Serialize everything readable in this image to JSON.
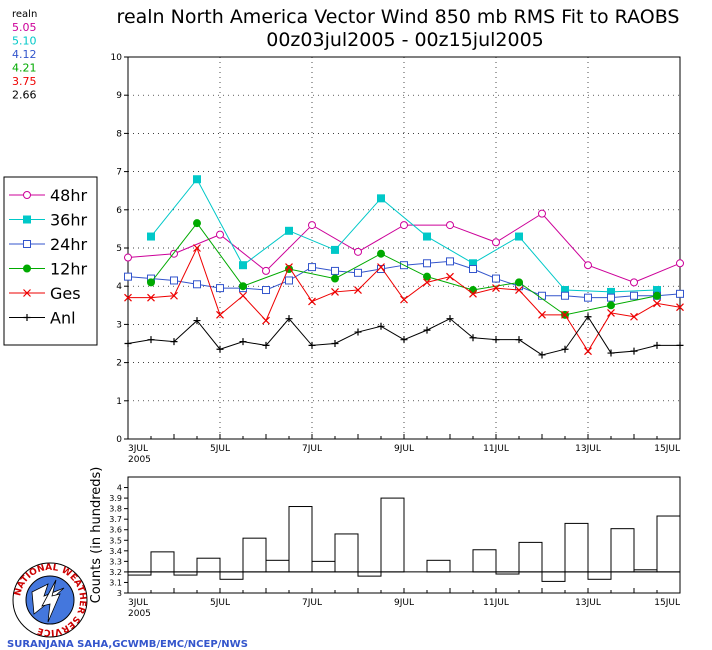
{
  "title_line1": "realn North America Vector Wind 850 mb RMS Fit to RAOBS",
  "title_line2": "00z03jul2005 - 00z15jul2005",
  "means": {
    "label": "realn",
    "items": [
      {
        "value": "5.05",
        "color": "#cc0099"
      },
      {
        "value": "5.10",
        "color": "#00c8c8"
      },
      {
        "value": "4.12",
        "color": "#3355cc"
      },
      {
        "value": "4.21",
        "color": "#00aa00"
      },
      {
        "value": "3.75",
        "color": "#ee0000"
      },
      {
        "value": "2.66",
        "color": "#000000"
      }
    ]
  },
  "legend": [
    {
      "label": "48hr",
      "color": "#cc0099",
      "marker": "circle-open"
    },
    {
      "label": "36hr",
      "color": "#00c8c8",
      "marker": "square-filled"
    },
    {
      "label": "24hr",
      "color": "#3355cc",
      "marker": "square-open"
    },
    {
      "label": "12hr",
      "color": "#00aa00",
      "marker": "circle-filled"
    },
    {
      "label": "Ges",
      "color": "#ee0000",
      "marker": "x"
    },
    {
      "label": "Anl",
      "color": "#000000",
      "marker": "plus"
    }
  ],
  "credit": "SURANJANA SAHA,GCWMB/EMC/NCEP/NWS",
  "logo_text": "NATIONAL WEATHER SERVICE",
  "chart_data": [
    {
      "type": "line",
      "x_unit": "days since 00z03jul2005",
      "xlim": [
        0,
        12
      ],
      "ylim": [
        0,
        10
      ],
      "yticks": [
        0,
        1,
        2,
        3,
        4,
        5,
        6,
        7,
        8,
        9,
        10
      ],
      "xtick_labels": [
        {
          "x": 0,
          "label": "3JUL",
          "sub": "2005"
        },
        {
          "x": 2,
          "label": "5JUL"
        },
        {
          "x": 4,
          "label": "7JUL"
        },
        {
          "x": 6,
          "label": "9JUL"
        },
        {
          "x": 8,
          "label": "11JUL"
        },
        {
          "x": 10,
          "label": "13JUL"
        },
        {
          "x": 12,
          "label": "15JUL"
        }
      ],
      "grid": true,
      "series": [
        {
          "name": "48hr",
          "x": [
            0,
            1,
            2,
            3,
            4,
            5,
            6,
            7,
            8,
            9,
            10,
            11,
            12
          ],
          "y": [
            4.75,
            4.85,
            5.35,
            4.4,
            5.6,
            4.9,
            5.6,
            5.6,
            5.15,
            5.9,
            4.55,
            4.1,
            4.6
          ]
        },
        {
          "name": "36hr",
          "x": [
            0.5,
            1.5,
            2.5,
            3.5,
            4.5,
            5.5,
            6.5,
            7.5,
            8.5,
            9.5,
            10.5,
            11.5
          ],
          "y": [
            5.3,
            6.8,
            4.55,
            5.45,
            4.95,
            6.3,
            5.3,
            4.6,
            5.3,
            3.9,
            3.85,
            3.9
          ]
        },
        {
          "name": "24hr",
          "x": [
            0,
            0.5,
            1,
            1.5,
            2,
            2.5,
            3,
            3.5,
            4,
            4.5,
            5,
            5.5,
            6,
            6.5,
            7,
            7.5,
            8,
            8.5,
            9,
            9.5,
            10,
            10.5,
            11,
            11.5,
            12
          ],
          "y": [
            4.25,
            4.2,
            4.15,
            4.05,
            3.95,
            3.95,
            3.9,
            4.15,
            4.5,
            4.4,
            4.35,
            4.45,
            4.55,
            4.6,
            4.65,
            4.45,
            4.2,
            4.0,
            3.75,
            3.75,
            3.7,
            3.7,
            3.75,
            3.75,
            3.8
          ]
        },
        {
          "name": "12hr",
          "x": [
            0.5,
            1.5,
            2.5,
            3.5,
            4.5,
            5.5,
            6.5,
            7.5,
            8.5,
            9.5,
            10.5,
            11.5
          ],
          "y": [
            4.1,
            5.65,
            4.0,
            4.45,
            4.2,
            4.85,
            4.25,
            3.9,
            4.1,
            3.25,
            3.5,
            3.75
          ]
        },
        {
          "name": "Ges",
          "x": [
            0,
            0.5,
            1,
            1.5,
            2,
            2.5,
            3,
            3.5,
            4,
            4.5,
            5,
            5.5,
            6,
            6.5,
            7,
            7.5,
            8,
            8.5,
            9,
            9.5,
            10,
            10.5,
            11,
            11.5,
            12
          ],
          "y": [
            3.7,
            3.7,
            3.75,
            5.0,
            3.25,
            3.75,
            3.1,
            4.5,
            3.6,
            3.85,
            3.9,
            4.5,
            3.65,
            4.1,
            4.25,
            3.8,
            3.95,
            3.9,
            3.25,
            3.25,
            2.3,
            3.3,
            3.2,
            3.55,
            3.45
          ]
        },
        {
          "name": "Anl",
          "x": [
            0,
            0.5,
            1,
            1.5,
            2,
            2.5,
            3,
            3.5,
            4,
            4.5,
            5,
            5.5,
            6,
            6.5,
            7,
            7.5,
            8,
            8.5,
            9,
            9.5,
            10,
            10.5,
            11,
            11.5,
            12
          ],
          "y": [
            2.5,
            2.6,
            2.55,
            3.1,
            2.35,
            2.55,
            2.45,
            3.15,
            2.45,
            2.5,
            2.8,
            2.95,
            2.6,
            2.85,
            3.15,
            2.65,
            2.6,
            2.6,
            2.2,
            2.35,
            3.2,
            2.25,
            2.3,
            2.45,
            2.45
          ]
        }
      ]
    },
    {
      "type": "bar",
      "ylabel": "Counts (in hundreds)",
      "xlim": [
        0,
        12
      ],
      "ylim": [
        3,
        4.1
      ],
      "yticks": [
        3,
        3.1,
        3.2,
        3.3,
        3.4,
        3.5,
        3.6,
        3.7,
        3.8,
        3.9,
        4
      ],
      "ytick_labels": [
        "3",
        "3.1",
        "3.2",
        "3.3",
        "3.4",
        "3.5",
        "3.6",
        "3.7",
        "3.8",
        "3.9",
        "4"
      ],
      "reference_line": 3.2,
      "x": [
        0,
        0.5,
        1,
        1.5,
        2,
        2.5,
        3,
        3.5,
        4,
        4.5,
        5,
        5.5,
        6,
        6.5,
        7,
        7.5,
        8,
        8.5,
        9,
        9.5,
        10,
        10.5,
        11,
        11.5
      ],
      "values": [
        3.17,
        3.39,
        3.17,
        3.33,
        3.13,
        3.52,
        3.31,
        3.82,
        3.3,
        3.56,
        3.16,
        3.9,
        3.2,
        3.31,
        3.2,
        3.41,
        3.18,
        3.48,
        3.11,
        3.66,
        3.13,
        3.61,
        3.22,
        3.73
      ]
    }
  ]
}
